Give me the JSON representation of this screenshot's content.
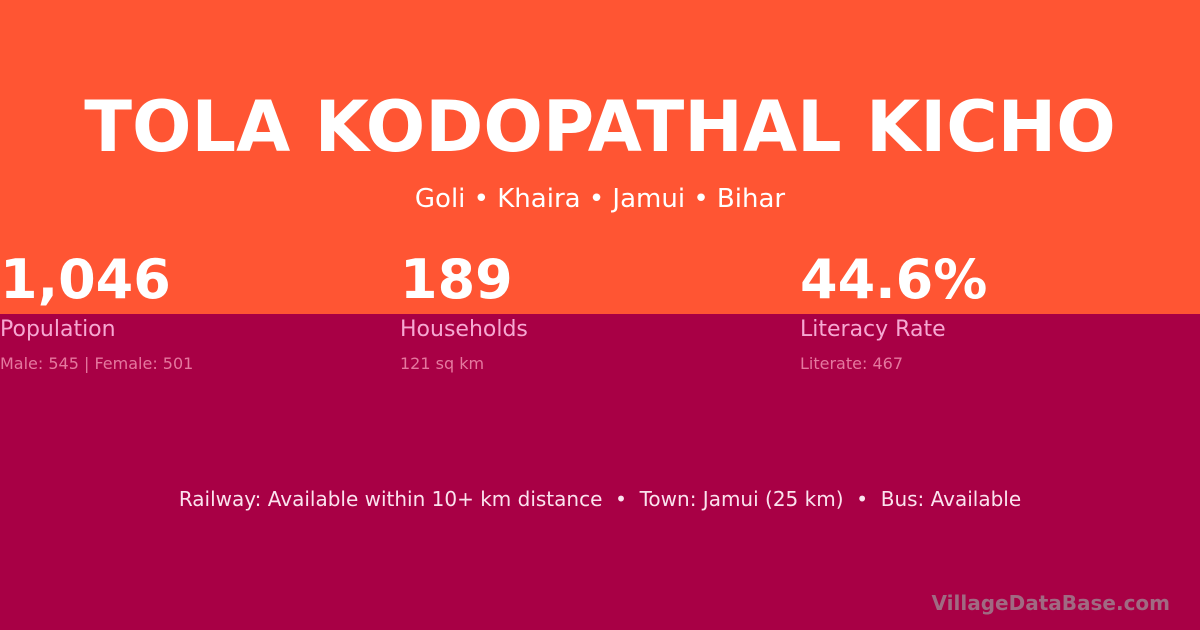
{
  "header": {
    "title": "TOLA KODOPATHAL KICHO",
    "subtitle": "Goli • Khaira • Jamui • Bihar"
  },
  "stats": [
    {
      "value": "1,046",
      "label": "Population",
      "detail": "Male: 545 | Female: 501"
    },
    {
      "value": "189",
      "label": "Households",
      "detail": "121 sq km"
    },
    {
      "value": "44.6%",
      "label": "Literacy Rate",
      "detail": "Literate: 467"
    }
  ],
  "info_line": "Railway: Available within 10+ km distance  •  Town: Jamui (25 km)  •  Bus: Available",
  "watermark": "VillageDataBase.com",
  "colors": {
    "top_band": "#ff5533",
    "bottom_band": "#a80045"
  }
}
